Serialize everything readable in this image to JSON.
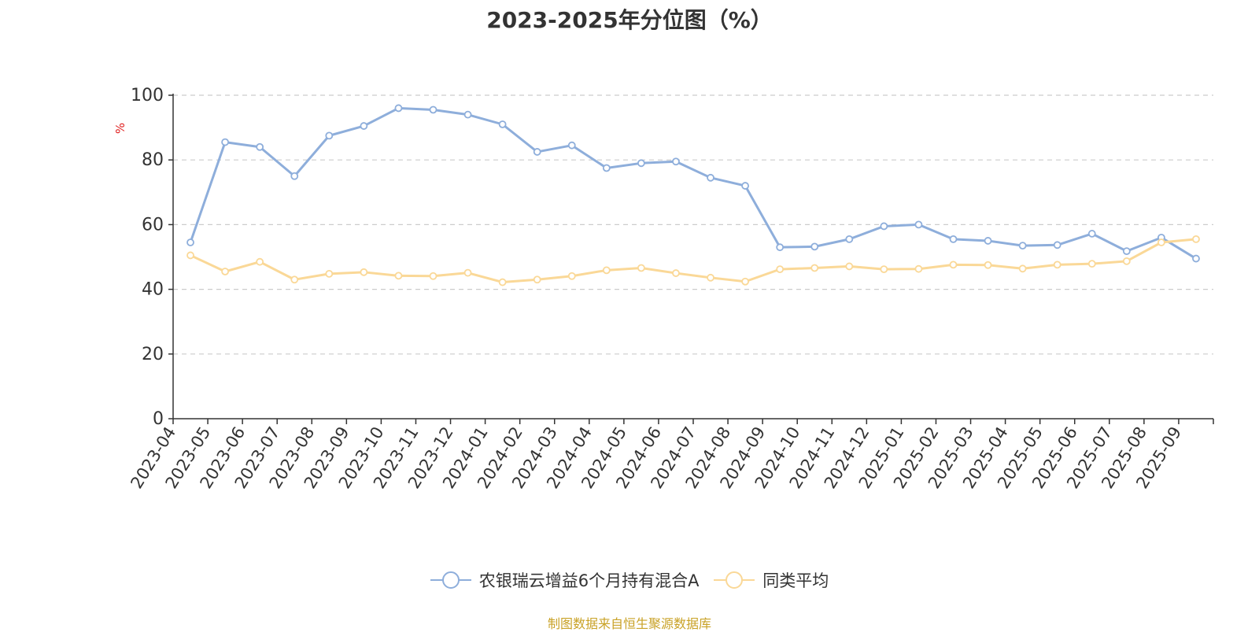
{
  "chart_data": {
    "type": "line",
    "title": "2023-2025年分位图（%）",
    "ylabel": "%",
    "ylim": [
      0,
      100
    ],
    "yticks": [
      0,
      20,
      40,
      60,
      80,
      100
    ],
    "grid": true,
    "legend_position": "bottom",
    "categories": [
      "2023-04",
      "2023-05",
      "2023-06",
      "2023-07",
      "2023-08",
      "2023-09",
      "2023-10",
      "2023-11",
      "2023-12",
      "2024-01",
      "2024-02",
      "2024-03",
      "2024-04",
      "2024-05",
      "2024-06",
      "2024-07",
      "2024-08",
      "2024-09",
      "2024-10",
      "2024-11",
      "2024-12",
      "2025-01",
      "2025-02",
      "2025-03",
      "2025-04",
      "2025-05",
      "2025-06",
      "2025-07",
      "2025-08",
      "2025-09"
    ],
    "series": [
      {
        "name": "农银瑞云增益6个月持有混合A",
        "color": "#8eaedb",
        "values": [
          54.5,
          85.5,
          84.0,
          75.0,
          87.5,
          90.5,
          96.0,
          95.5,
          94.0,
          91.0,
          82.5,
          84.5,
          77.5,
          79.0,
          79.5,
          74.5,
          72.0,
          53.0,
          53.2,
          55.5,
          59.5,
          60.0,
          55.5,
          55.0,
          53.5,
          53.7,
          57.2,
          51.8,
          56.0,
          49.5
        ]
      },
      {
        "name": "同类平均",
        "color": "#fad897",
        "values": [
          50.5,
          45.5,
          48.5,
          43.0,
          44.8,
          45.3,
          44.2,
          44.1,
          45.1,
          42.2,
          43.0,
          44.1,
          45.9,
          46.6,
          45.0,
          43.6,
          42.4,
          46.2,
          46.6,
          47.1,
          46.2,
          46.3,
          47.6,
          47.5,
          46.4,
          47.6,
          47.9,
          48.7,
          54.5,
          55.5
        ]
      }
    ]
  },
  "source_text": "制图数据来自恒生聚源数据库"
}
